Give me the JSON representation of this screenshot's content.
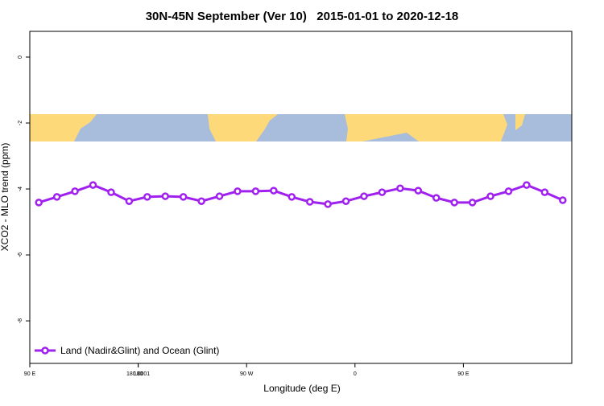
{
  "chart_data": {
    "type": "line",
    "title": "30N-45N September (Ver 10)   2015-01-01 to 2020-12-18",
    "xlabel": "Longitude (deg E)",
    "ylabel": "XCO2 - MLO trend (ppm)",
    "xlim": [
      90,
      540
    ],
    "xticks": [
      {
        "value": 90,
        "label": "90 E"
      },
      180,
      {
        "value": 270,
        "label": "90 W"
      },
      {
        "value": 360,
        "label": "0"
      },
      {
        "value": 450,
        "label": "90 E"
      },
      180.0001
    ],
    "ylim": [
      -9.29,
      0.78
    ],
    "yticks": [
      0,
      -2,
      -4,
      -6,
      -8
    ],
    "legend": "bottom left",
    "series": [
      {
        "name": "Land (Nadir&Glint) and Ocean (Glint)",
        "color": "#a020f0",
        "x": [
          97.5,
          112.5,
          127.5,
          142.5,
          157.5,
          172.5,
          187.5,
          202.5,
          217.5,
          232.5,
          247.5,
          262.5,
          277.5,
          292.5,
          307.5,
          322.5,
          337.5,
          352.5,
          367.5,
          382.5,
          397.5,
          412.5,
          427.5,
          442.5,
          457.5,
          472.5,
          487.5,
          502.5,
          517.5,
          532.5
        ],
        "values": [
          -4.41,
          -4.24,
          -4.07,
          -3.88,
          -4.1,
          -4.37,
          -4.24,
          -4.22,
          -4.24,
          -4.37,
          -4.22,
          -4.07,
          -4.07,
          -4.05,
          -4.24,
          -4.39,
          -4.46,
          -4.37,
          -4.22,
          -4.1,
          -3.98,
          -4.05,
          -4.27,
          -4.41,
          -4.41,
          -4.22,
          -4.07,
          -3.88,
          -4.1,
          -4.34
        ]
      }
    ]
  }
}
